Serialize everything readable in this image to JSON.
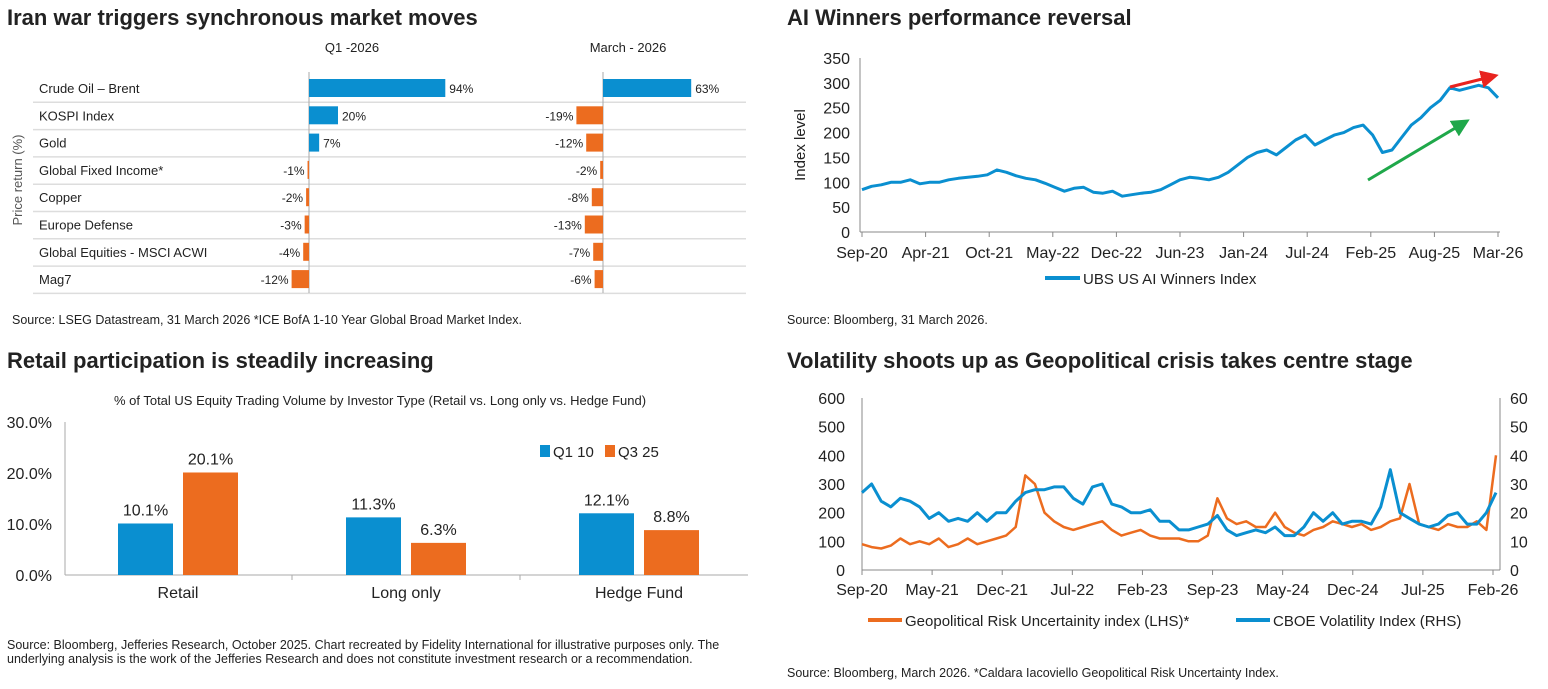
{
  "panels": {
    "tl": {
      "title": "Iran war triggers synchronous market moves",
      "source": "Source: LSEG Datastream, 31 March 2026 *ICE BofA 1-10 Year Global Broad Market Index."
    },
    "tr": {
      "title": "AI Winners performance reversal",
      "source": "Source: Bloomberg, 31 March 2026."
    },
    "bl": {
      "title": "Retail participation is steadily increasing",
      "source": "Source: Bloomberg, Jefferies Research, October 2025. Chart recreated by Fidelity International for illustrative purposes only. The underlying analysis is the work of the Jefferies Research and does not constitute investment research or a recommendation."
    },
    "br": {
      "title": "Volatility shoots up as Geopolitical crisis takes centre stage",
      "source": "Source: Bloomberg, March 2026. *Caldara Iacoviello Geopolitical Risk Uncertainty Index."
    }
  },
  "colors": {
    "blue": "#0a8fd0",
    "orange": "#ec6c1f",
    "red": "#e8231f",
    "green": "#1fa84a"
  },
  "chart_data": [
    {
      "type": "bar",
      "orientation": "horizontal",
      "ylabel": "Price return (%)",
      "categories": [
        "Crude Oil – Brent",
        "KOSPI Index",
        "Gold",
        "Global Fixed Income*",
        "Copper",
        "Europe Defense",
        "Global Equities - MSCI ACWI",
        "Mag7"
      ],
      "series": [
        {
          "name": "Q1 -2026",
          "values": [
            94,
            20,
            7,
            -1,
            -2,
            -3,
            -4,
            -12
          ],
          "labels": [
            "94%",
            "20%",
            "7%",
            "-1%",
            "-2%",
            "-3%",
            "-4%",
            "-12%"
          ]
        },
        {
          "name": "March - 2026",
          "values": [
            63,
            -19,
            -12,
            -2,
            -8,
            -13,
            -7,
            -6
          ],
          "labels": [
            "63%",
            "-19%",
            "-12%",
            "-2%",
            "-8%",
            "-13%",
            "-7%",
            "-6%"
          ]
        }
      ],
      "positive_color": "#0a8fd0",
      "negative_color": "#ec6c1f"
    },
    {
      "type": "line",
      "ylabel": "Index level",
      "ylim": [
        0,
        350
      ],
      "yticks": [
        "0",
        "50",
        "100",
        "150",
        "200",
        "250",
        "300",
        "350"
      ],
      "xticks": [
        "Sep-20",
        "Apr-21",
        "Oct-21",
        "May-22",
        "Dec-22",
        "Jun-23",
        "Jan-24",
        "Jul-24",
        "Feb-25",
        "Aug-25",
        "Mar-26"
      ],
      "x": [
        "2020-09",
        "2020-10",
        "2020-11",
        "2020-12",
        "2021-01",
        "2021-02",
        "2021-03",
        "2021-04",
        "2021-05",
        "2021-06",
        "2021-07",
        "2021-08",
        "2021-09",
        "2021-10",
        "2021-11",
        "2021-12",
        "2022-01",
        "2022-02",
        "2022-03",
        "2022-04",
        "2022-05",
        "2022-06",
        "2022-07",
        "2022-08",
        "2022-09",
        "2022-10",
        "2022-11",
        "2022-12",
        "2023-01",
        "2023-02",
        "2023-03",
        "2023-04",
        "2023-05",
        "2023-06",
        "2023-07",
        "2023-08",
        "2023-09",
        "2023-10",
        "2023-11",
        "2023-12",
        "2024-01",
        "2024-02",
        "2024-03",
        "2024-04",
        "2024-05",
        "2024-06",
        "2024-07",
        "2024-08",
        "2024-09",
        "2024-10",
        "2024-11",
        "2024-12",
        "2025-01",
        "2025-02",
        "2025-03",
        "2025-04",
        "2025-05",
        "2025-06",
        "2025-07",
        "2025-08",
        "2025-09",
        "2025-10",
        "2025-11",
        "2025-12",
        "2026-01",
        "2026-02",
        "2026-03"
      ],
      "series": [
        {
          "name": "UBS US AI Winners Index",
          "color": "#0a8fd0",
          "values": [
            85,
            92,
            95,
            100,
            100,
            105,
            97,
            100,
            100,
            105,
            108,
            110,
            112,
            115,
            125,
            120,
            113,
            108,
            105,
            98,
            90,
            82,
            88,
            90,
            80,
            78,
            82,
            72,
            75,
            78,
            80,
            85,
            95,
            105,
            110,
            108,
            105,
            110,
            120,
            135,
            150,
            160,
            165,
            155,
            170,
            185,
            195,
            175,
            185,
            195,
            200,
            210,
            215,
            195,
            160,
            165,
            190,
            215,
            230,
            250,
            265,
            290,
            285,
            290,
            295,
            290,
            270
          ]
        }
      ],
      "annotations": [
        {
          "type": "arrow",
          "color": "#e8231f",
          "direction": "down"
        },
        {
          "type": "arrow",
          "color": "#1fa84a",
          "direction": "up"
        }
      ],
      "legend": "bottom"
    },
    {
      "type": "bar",
      "title": "% of Total US Equity Trading Volume by Investor Type (Retail vs. Long only vs. Hedge Fund)",
      "categories": [
        "Retail",
        "Long only",
        "Hedge Fund"
      ],
      "ylim": [
        0,
        30
      ],
      "yticks": [
        "0.0%",
        "10.0%",
        "20.0%",
        "30.0%"
      ],
      "series": [
        {
          "name": "Q1 10",
          "color": "#0a8fd0",
          "values": [
            10.1,
            11.3,
            12.1
          ],
          "labels": [
            "10.1%",
            "11.3%",
            "12.1%"
          ]
        },
        {
          "name": "Q3 25",
          "color": "#ec6c1f",
          "values": [
            20.1,
            6.3,
            8.8
          ],
          "labels": [
            "20.1%",
            "6.3%",
            "8.8%"
          ]
        }
      ],
      "legend": "top-right"
    },
    {
      "type": "line",
      "ylim": [
        0,
        600
      ],
      "y2lim": [
        0,
        60
      ],
      "yticks": [
        "0",
        "100",
        "200",
        "300",
        "400",
        "500",
        "600"
      ],
      "y2ticks": [
        "0",
        "10",
        "20",
        "30",
        "40",
        "50",
        "60"
      ],
      "xticks": [
        "Sep-20",
        "May-21",
        "Dec-21",
        "Jul-22",
        "Feb-23",
        "Sep-23",
        "May-24",
        "Dec-24",
        "Jul-25",
        "Feb-26"
      ],
      "x": [
        "2020-09",
        "2020-10",
        "2020-11",
        "2020-12",
        "2021-01",
        "2021-02",
        "2021-03",
        "2021-04",
        "2021-05",
        "2021-06",
        "2021-07",
        "2021-08",
        "2021-09",
        "2021-10",
        "2021-11",
        "2021-12",
        "2022-01",
        "2022-02",
        "2022-03",
        "2022-04",
        "2022-05",
        "2022-06",
        "2022-07",
        "2022-08",
        "2022-09",
        "2022-10",
        "2022-11",
        "2022-12",
        "2023-01",
        "2023-02",
        "2023-03",
        "2023-04",
        "2023-05",
        "2023-06",
        "2023-07",
        "2023-08",
        "2023-09",
        "2023-10",
        "2023-11",
        "2023-12",
        "2024-01",
        "2024-02",
        "2024-03",
        "2024-04",
        "2024-05",
        "2024-06",
        "2024-07",
        "2024-08",
        "2024-09",
        "2024-10",
        "2024-11",
        "2024-12",
        "2025-01",
        "2025-02",
        "2025-03",
        "2025-04",
        "2025-05",
        "2025-06",
        "2025-07",
        "2025-08",
        "2025-09",
        "2025-10",
        "2025-11",
        "2025-12",
        "2026-01",
        "2026-02",
        "2026-03"
      ],
      "series": [
        {
          "name": "Geopolitical Risk Uncertainity index (LHS)*",
          "axis": "left",
          "color": "#ec6c1f",
          "values": [
            90,
            80,
            75,
            85,
            110,
            90,
            100,
            90,
            110,
            80,
            90,
            110,
            90,
            100,
            110,
            120,
            150,
            330,
            300,
            200,
            170,
            150,
            140,
            150,
            160,
            170,
            140,
            120,
            130,
            140,
            120,
            110,
            110,
            110,
            100,
            100,
            120,
            250,
            180,
            160,
            170,
            150,
            150,
            200,
            150,
            130,
            120,
            140,
            150,
            170,
            160,
            150,
            160,
            140,
            150,
            170,
            180,
            300,
            160,
            150,
            140,
            160,
            150,
            150,
            170,
            140,
            400
          ]
        },
        {
          "name": "CBOE Volatility Index (RHS)",
          "axis": "right",
          "color": "#0a8fd0",
          "values": [
            27,
            30,
            24,
            22,
            25,
            24,
            22,
            18,
            20,
            17,
            18,
            17,
            20,
            17,
            20,
            20,
            24,
            27,
            28,
            28,
            29,
            29,
            25,
            23,
            29,
            30,
            23,
            22,
            20,
            20,
            21,
            17,
            17,
            14,
            14,
            15,
            16,
            19,
            14,
            12,
            13,
            14,
            13,
            15,
            12,
            12,
            15,
            20,
            17,
            20,
            16,
            17,
            17,
            16,
            22,
            35,
            20,
            18,
            16,
            15,
            16,
            19,
            20,
            16,
            16,
            20,
            27
          ]
        }
      ],
      "legend": "bottom"
    }
  ]
}
